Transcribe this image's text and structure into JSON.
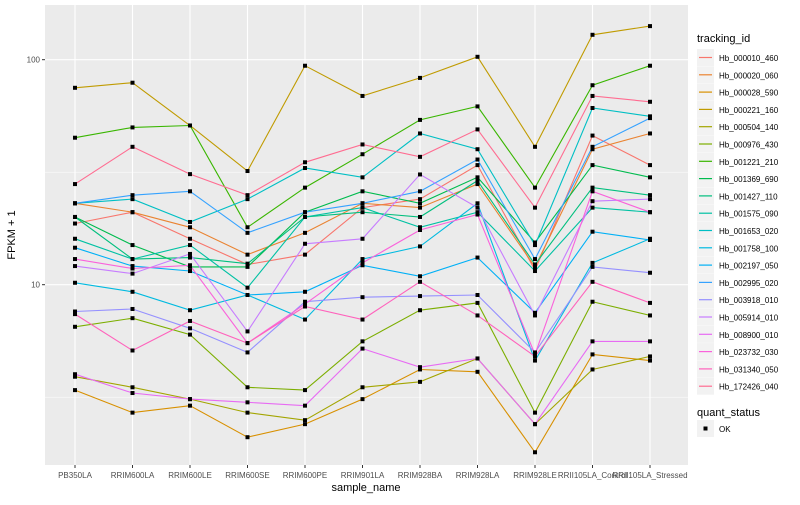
{
  "chart_data": {
    "type": "line",
    "title": "",
    "xlabel": "sample_name",
    "ylabel": "FPKM + 1",
    "y_scale": "log10",
    "ylim": [
      1.58,
      175
    ],
    "y_ticks": [
      10,
      100
    ],
    "y_tick_labels": [
      "10",
      "100"
    ],
    "grid": true,
    "legend_position": "right",
    "legend_title": "tracking_id",
    "shape_legend_title": "quant_status",
    "shape_legend_items": [
      "OK"
    ],
    "categories": [
      "PB350LA",
      "RRIM600LA",
      "RRIM600LE",
      "RRIM600SE",
      "RRIM600PE",
      "RRIM901LA",
      "RRIM928BA",
      "RRIM928LA",
      "RRIM928LE",
      "RRII105LA_Control",
      "RRII105LA_Stressed"
    ],
    "series": [
      {
        "name": "Hb_000010_460",
        "color": "#F8766D",
        "values": [
          18.7,
          21,
          16,
          12.3,
          13.6,
          22,
          24,
          34,
          11.6,
          46,
          34
        ]
      },
      {
        "name": "Hb_000020_060",
        "color": "#EA8331",
        "values": [
          23,
          21,
          18,
          13.6,
          17,
          23,
          22,
          28,
          12,
          40,
          47
        ]
      },
      {
        "name": "Hb_000028_590",
        "color": "#D89000",
        "values": [
          3.4,
          2.7,
          2.9,
          2.1,
          2.4,
          3.1,
          4.2,
          4.1,
          1.8,
          4.9,
          4.6
        ]
      },
      {
        "name": "Hb_000221_160",
        "color": "#C09B00",
        "values": [
          75,
          79,
          51,
          32,
          94,
          69,
          83,
          103,
          41,
          129,
          141
        ]
      },
      {
        "name": "Hb_000504_140",
        "color": "#A3A500",
        "values": [
          3.9,
          3.5,
          3.1,
          2.7,
          2.5,
          3.5,
          3.7,
          4.7,
          2.4,
          4.2,
          4.8
        ]
      },
      {
        "name": "Hb_000976_430",
        "color": "#7CAE00",
        "values": [
          6.5,
          7.1,
          6.0,
          3.5,
          3.4,
          5.6,
          7.7,
          8.3,
          2.7,
          8.4,
          7.3
        ]
      },
      {
        "name": "Hb_001221_210",
        "color": "#39B600",
        "values": [
          45,
          50,
          51,
          18,
          27,
          38,
          54,
          62,
          27,
          77,
          94
        ]
      },
      {
        "name": "Hb_001369_690",
        "color": "#00BB4E",
        "values": [
          20,
          15,
          12,
          12,
          21,
          26,
          23,
          30,
          15.4,
          34,
          30
        ]
      },
      {
        "name": "Hb_001427_110",
        "color": "#00BF7D",
        "values": [
          20,
          13,
          13.2,
          12.4,
          20,
          21,
          20,
          29,
          12.3,
          27,
          25
        ]
      },
      {
        "name": "Hb_001575_090",
        "color": "#00C1A3",
        "values": [
          16,
          13,
          15,
          9.7,
          20,
          22,
          18,
          21,
          11.5,
          22,
          21
        ]
      },
      {
        "name": "Hb_001653_020",
        "color": "#00BFC4",
        "values": [
          23,
          24,
          19,
          24,
          33,
          30,
          47,
          40,
          15,
          61,
          56
        ]
      },
      {
        "name": "Hb_001758_100",
        "color": "#00BAE0",
        "values": [
          10.2,
          9.3,
          7.7,
          9.0,
          7.0,
          13.0,
          14.8,
          23,
          4.6,
          12.5,
          16
        ]
      },
      {
        "name": "Hb_002197_050",
        "color": "#00B0F6",
        "values": [
          14.6,
          12.1,
          11.5,
          9.0,
          9.3,
          12.2,
          10.9,
          13.2,
          7.5,
          17.2,
          15.8
        ]
      },
      {
        "name": "Hb_002995_020",
        "color": "#35A2FF",
        "values": [
          23,
          25,
          26,
          17,
          21,
          23,
          26,
          36,
          13,
          41,
          55
        ]
      },
      {
        "name": "Hb_003918_010",
        "color": "#9590FF",
        "values": [
          7.6,
          7.8,
          6.4,
          5.0,
          8.4,
          8.8,
          8.9,
          9.0,
          5.0,
          12.0,
          11.3
        ]
      },
      {
        "name": "Hb_005914_010",
        "color": "#C77CFF",
        "values": [
          12.1,
          11.2,
          13.7,
          6.2,
          15.2,
          16.0,
          30.9,
          22,
          7.3,
          23.5,
          24
        ]
      },
      {
        "name": "Hb_008900_010",
        "color": "#E76BF3",
        "values": [
          4.0,
          3.3,
          3.1,
          3.0,
          2.9,
          5.2,
          4.3,
          4.7,
          2.4,
          5.6,
          5.6
        ]
      },
      {
        "name": "Hb_023732_030",
        "color": "#FA62DB",
        "values": [
          13.0,
          11.8,
          12.2,
          5.5,
          8.2,
          12.5,
          17.5,
          20.5,
          4.9,
          26,
          21
        ]
      },
      {
        "name": "Hb_031340_050",
        "color": "#FF62BC",
        "values": [
          7.4,
          5.1,
          6.9,
          5.5,
          8.0,
          7.0,
          10.3,
          7.3,
          4.8,
          10.3,
          8.3
        ]
      },
      {
        "name": "Hb_172426_040",
        "color": "#FF6C91",
        "values": [
          28,
          41,
          31,
          25,
          35,
          42,
          37,
          49,
          22,
          69,
          65
        ]
      }
    ]
  }
}
